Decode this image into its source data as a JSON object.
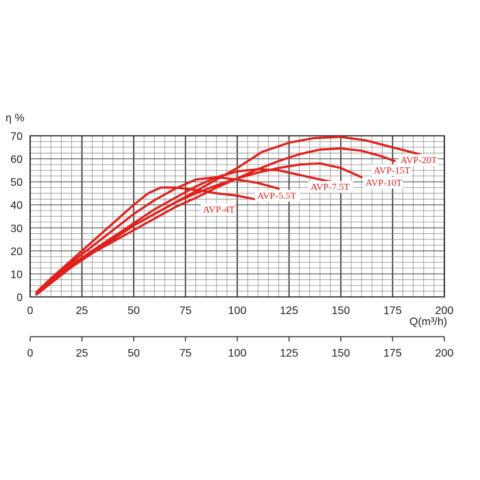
{
  "chart_data": {
    "type": "line",
    "ylabel": "η %",
    "xlabel": "Q(m³/h)",
    "xlim": [
      0,
      200
    ],
    "ylim": [
      0,
      70
    ],
    "x_ticks": [
      0,
      25,
      50,
      75,
      100,
      125,
      150,
      175,
      200
    ],
    "y_ticks": [
      0,
      10,
      20,
      30,
      40,
      50,
      60,
      70
    ],
    "secondary_x_ticks": [
      0,
      25,
      50,
      75,
      100,
      125,
      150,
      175,
      200
    ],
    "grid": true,
    "line_color": "#e0201b",
    "series": [
      {
        "name": "AVP-4T",
        "x": [
          3,
          10,
          20,
          30,
          40,
          50,
          57,
          63,
          70,
          80,
          90,
          100,
          108
        ],
        "y": [
          2,
          8,
          16,
          24,
          32,
          40,
          45,
          47.5,
          47.5,
          46.5,
          45,
          44,
          42.5
        ]
      },
      {
        "name": "AVP-5.5T",
        "x": [
          3,
          10,
          20,
          30,
          40,
          50,
          60,
          70,
          80,
          90,
          100,
          110,
          120
        ],
        "y": [
          2,
          8,
          15,
          22,
          29,
          36,
          42,
          47,
          51,
          52,
          51,
          49.5,
          47
        ]
      },
      {
        "name": "AVP-7.5T",
        "x": [
          3,
          10,
          20,
          30,
          40,
          50,
          60,
          70,
          80,
          90,
          100,
          110,
          120,
          130,
          145
        ],
        "y": [
          2,
          7,
          14,
          20,
          26,
          32,
          38,
          43,
          48,
          52,
          54.5,
          55.5,
          55,
          53,
          50
        ]
      },
      {
        "name": "AVP-10T",
        "x": [
          3,
          10,
          20,
          30,
          40,
          50,
          60,
          70,
          80,
          90,
          100,
          110,
          120,
          130,
          140,
          150,
          160
        ],
        "y": [
          2,
          7,
          14,
          20,
          26,
          31,
          36,
          41,
          45,
          48.5,
          51.5,
          54,
          56,
          57.5,
          58,
          56,
          52
        ]
      },
      {
        "name": "AVP-15T",
        "x": [
          3,
          10,
          20,
          30,
          40,
          50,
          60,
          70,
          80,
          90,
          100,
          110,
          120,
          130,
          140,
          150,
          160,
          170,
          176
        ],
        "y": [
          1,
          6,
          13,
          19,
          24,
          29,
          34,
          39,
          43,
          47.5,
          51.5,
          55.5,
          59,
          62,
          64,
          64.5,
          63.5,
          61,
          59
        ]
      },
      {
        "name": "AVP-20T",
        "x": [
          3,
          10,
          20,
          30,
          40,
          50,
          60,
          70,
          80,
          90,
          100,
          112,
          125,
          137,
          150,
          162,
          175,
          188
        ],
        "y": [
          1,
          6,
          13,
          19,
          25,
          31,
          36,
          41,
          46,
          51,
          56,
          63,
          67,
          69,
          69.5,
          68,
          65,
          62
        ]
      }
    ],
    "label_texts": [
      "AVP-4T",
      "AVP-5.5T",
      "AVP-7.5T",
      "AVP-10T",
      "AVP-15T",
      "AVP-20T"
    ]
  }
}
